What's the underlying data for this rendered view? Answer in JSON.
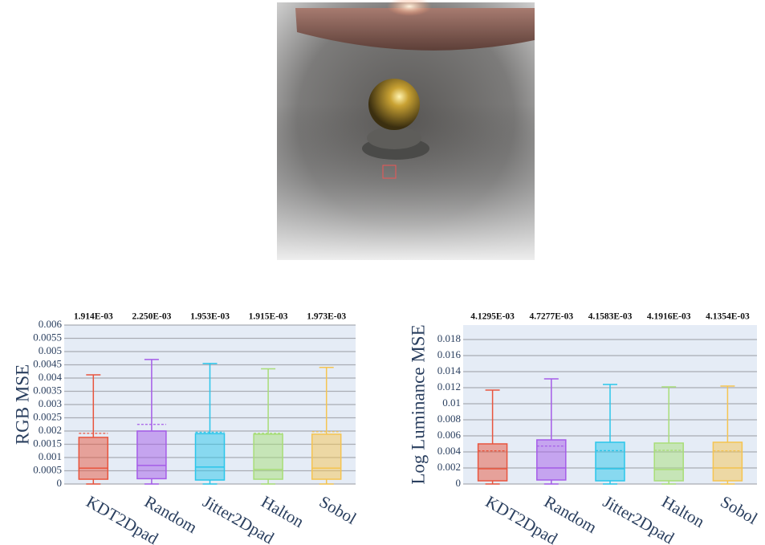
{
  "chart_data": [
    {
      "type": "box",
      "ylabel": "RGB MSE",
      "categories": [
        "KDT2Dpad",
        "Random",
        "Jitter2Dpad",
        "Halton",
        "Sobol"
      ],
      "colors": [
        "#e8553e",
        "#a55ce8",
        "#2bc6ea",
        "#a8dd78",
        "#f5c451"
      ],
      "min": [
        0,
        0,
        0,
        0,
        0
      ],
      "q1": [
        0.00018,
        0.0002,
        0.00015,
        0.00018,
        0.00018
      ],
      "median": [
        0.0006,
        0.0007,
        0.00064,
        0.00055,
        0.0006
      ],
      "q3": [
        0.00176,
        0.002,
        0.0019,
        0.00188,
        0.00188
      ],
      "max": [
        0.00412,
        0.0047,
        0.00455,
        0.00435,
        0.0044
      ],
      "mean": [
        0.001914,
        0.00225,
        0.001953,
        0.001915,
        0.001973
      ],
      "value_labels": [
        "1.914E-03",
        "2.250E-03",
        "1.953E-03",
        "1.915E-03",
        "1.973E-03"
      ],
      "ylim": [
        0,
        0.006
      ],
      "yticks": [
        0,
        0.0005,
        0.001,
        0.0015,
        0.002,
        0.0025,
        0.003,
        0.0035,
        0.004,
        0.0045,
        0.005,
        0.0055,
        0.006
      ],
      "grid": true
    },
    {
      "type": "box",
      "ylabel": "Log Luminance MSE",
      "categories": [
        "KDT2Dpad",
        "Random",
        "Jitter2Dpad",
        "Halton",
        "Sobol"
      ],
      "colors": [
        "#e8553e",
        "#a55ce8",
        "#2bc6ea",
        "#a8dd78",
        "#f5c451"
      ],
      "min": [
        0,
        0,
        0,
        0,
        0
      ],
      "q1": [
        0.0004,
        0.0005,
        0.0004,
        0.0004,
        0.0004
      ],
      "median": [
        0.0019,
        0.002,
        0.0019,
        0.0018,
        0.002
      ],
      "q3": [
        0.005,
        0.0055,
        0.0052,
        0.0051,
        0.0052
      ],
      "max": [
        0.0117,
        0.0131,
        0.0124,
        0.0121,
        0.0122
      ],
      "mean": [
        0.0041295,
        0.0047277,
        0.0041583,
        0.0041916,
        0.0041354
      ],
      "value_labels": [
        "4.1295E-03",
        "4.7277E-03",
        "4.1583E-03",
        "4.1916E-03",
        "4.1354E-03"
      ],
      "ylim": [
        0,
        0.0198
      ],
      "yticks": [
        0,
        0.002,
        0.004,
        0.006,
        0.008,
        0.01,
        0.012,
        0.014,
        0.016,
        0.018
      ],
      "grid": true
    }
  ]
}
